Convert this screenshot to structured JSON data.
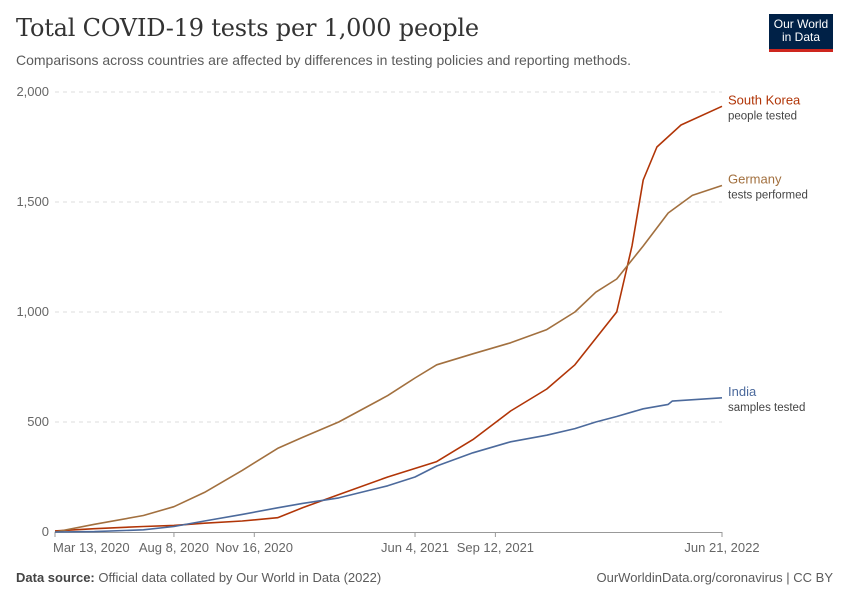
{
  "header": {
    "title": "Total COVID-19 tests per 1,000 people",
    "subtitle": "Comparisons across countries are affected by differences in testing policies and reporting methods."
  },
  "logo": {
    "line1": "Our World",
    "line2": "in Data"
  },
  "footer": {
    "source_label": "Data source:",
    "source_text": "Official data collated by Our World in Data (2022)",
    "right_text": "OurWorldinData.org/coronavirus | CC BY"
  },
  "colors": {
    "south_korea": "#b13507",
    "germany": "#a2703f",
    "india": "#4c6a9c",
    "grid": "#dddddd",
    "axis_text": "#666666"
  },
  "chart_data": {
    "type": "line",
    "x_date_range": [
      "2020-03-13",
      "2022-06-21"
    ],
    "ylim": [
      0,
      2000
    ],
    "y_ticks": [
      0,
      500,
      1000,
      1500,
      2000
    ],
    "y_tick_labels": [
      "0",
      "500",
      "1,000",
      "1,500",
      "2,000"
    ],
    "x_ticks": [
      "2020-03-13",
      "2020-08-08",
      "2020-11-16",
      "2021-06-04",
      "2021-09-12",
      "2022-06-21"
    ],
    "x_tick_labels": [
      "Mar 13, 2020",
      "Aug 8, 2020",
      "Nov 16, 2020",
      "Jun 4, 2021",
      "Sep 12, 2021",
      "Jun 21, 2022"
    ],
    "grid": "horizontal-dashed",
    "legend": "line-end labels",
    "series": [
      {
        "name": "South Korea",
        "sublabel": "people tested",
        "color": "#b13507",
        "points": [
          [
            "2020-03-13",
            5
          ],
          [
            "2020-05-01",
            15
          ],
          [
            "2020-07-01",
            25
          ],
          [
            "2020-08-08",
            30
          ],
          [
            "2020-09-15",
            40
          ],
          [
            "2020-11-01",
            50
          ],
          [
            "2020-12-15",
            65
          ],
          [
            "2021-01-15",
            110
          ],
          [
            "2021-03-01",
            170
          ],
          [
            "2021-05-01",
            250
          ],
          [
            "2021-07-01",
            320
          ],
          [
            "2021-08-15",
            420
          ],
          [
            "2021-10-01",
            550
          ],
          [
            "2021-11-15",
            650
          ],
          [
            "2021-12-20",
            760
          ],
          [
            "2022-01-15",
            880
          ],
          [
            "2022-02-10",
            1000
          ],
          [
            "2022-03-01",
            1300
          ],
          [
            "2022-03-15",
            1600
          ],
          [
            "2022-04-01",
            1750
          ],
          [
            "2022-05-01",
            1850
          ],
          [
            "2022-06-21",
            1935
          ]
        ]
      },
      {
        "name": "Germany",
        "sublabel": "tests performed",
        "color": "#a2703f",
        "points": [
          [
            "2020-03-13",
            0
          ],
          [
            "2020-05-01",
            35
          ],
          [
            "2020-07-01",
            75
          ],
          [
            "2020-08-08",
            115
          ],
          [
            "2020-09-15",
            180
          ],
          [
            "2020-11-01",
            280
          ],
          [
            "2020-12-15",
            380
          ],
          [
            "2021-01-15",
            430
          ],
          [
            "2021-03-01",
            500
          ],
          [
            "2021-05-01",
            620
          ],
          [
            "2021-06-04",
            700
          ],
          [
            "2021-07-01",
            760
          ],
          [
            "2021-08-15",
            810
          ],
          [
            "2021-10-01",
            860
          ],
          [
            "2021-11-15",
            920
          ],
          [
            "2021-12-20",
            1000
          ],
          [
            "2022-01-15",
            1090
          ],
          [
            "2022-02-10",
            1150
          ],
          [
            "2022-03-15",
            1300
          ],
          [
            "2022-04-15",
            1450
          ],
          [
            "2022-05-15",
            1530
          ],
          [
            "2022-06-21",
            1575
          ]
        ]
      },
      {
        "name": "India",
        "sublabel": "samples tested",
        "color": "#4c6a9c",
        "points": [
          [
            "2020-03-13",
            0
          ],
          [
            "2020-05-01",
            2
          ],
          [
            "2020-07-01",
            10
          ],
          [
            "2020-08-08",
            25
          ],
          [
            "2020-09-15",
            50
          ],
          [
            "2020-11-01",
            80
          ],
          [
            "2020-12-15",
            110
          ],
          [
            "2021-01-15",
            130
          ],
          [
            "2021-03-01",
            155
          ],
          [
            "2021-05-01",
            210
          ],
          [
            "2021-06-04",
            250
          ],
          [
            "2021-07-01",
            300
          ],
          [
            "2021-08-15",
            360
          ],
          [
            "2021-10-01",
            410
          ],
          [
            "2021-11-15",
            440
          ],
          [
            "2021-12-20",
            470
          ],
          [
            "2022-01-15",
            500
          ],
          [
            "2022-02-10",
            525
          ],
          [
            "2022-03-15",
            560
          ],
          [
            "2022-04-15",
            580
          ],
          [
            "2022-04-20",
            595
          ],
          [
            "2022-06-21",
            610
          ]
        ]
      }
    ]
  }
}
